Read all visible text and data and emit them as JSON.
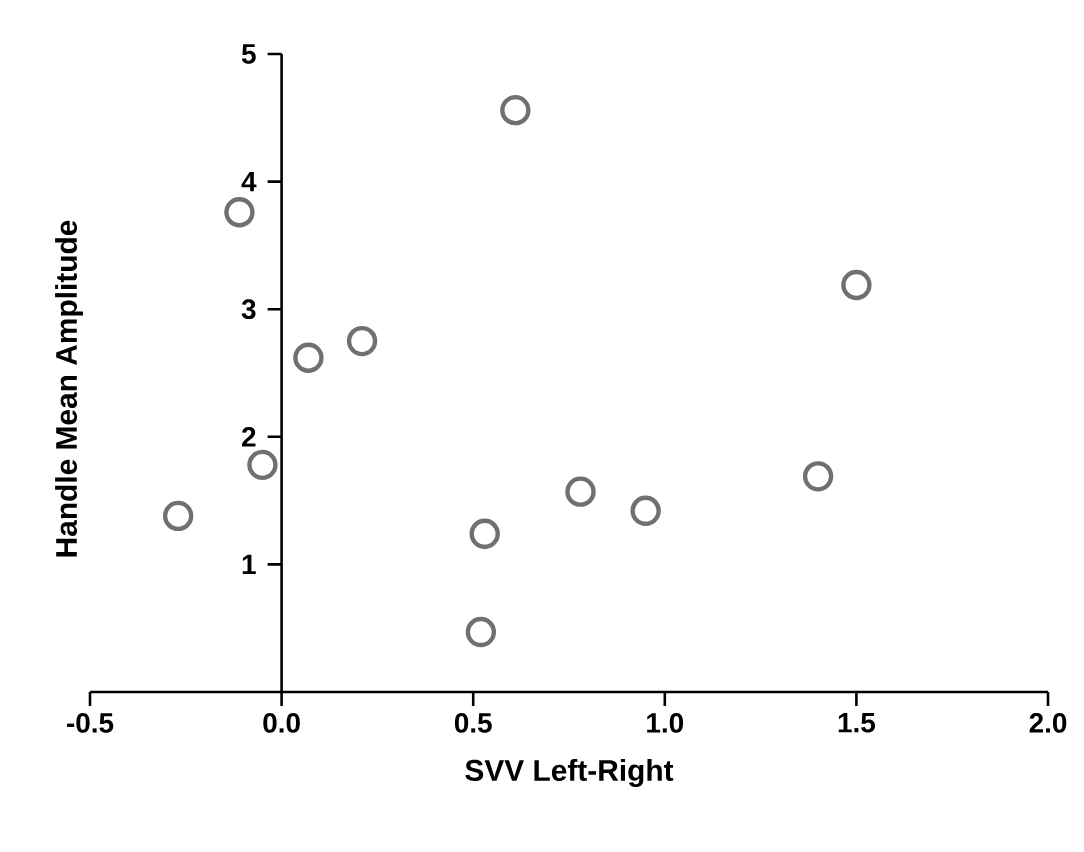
{
  "chart_data": {
    "type": "scatter",
    "xlabel": "SVV Left-Right",
    "ylabel": "Handle Mean Amplitude",
    "x": [
      -0.27,
      -0.11,
      -0.05,
      0.07,
      0.21,
      0.61,
      0.53,
      0.52,
      0.78,
      0.95,
      1.4,
      1.5
    ],
    "values": [
      1.38,
      3.76,
      1.78,
      2.62,
      2.75,
      4.56,
      1.24,
      0.47,
      1.57,
      1.42,
      1.69,
      3.19
    ],
    "color": "#707070",
    "marker": "circle",
    "xlim": [
      -0.5,
      2.0
    ],
    "ylim": [
      0,
      5
    ],
    "xticks": [
      {
        "value": -0.5,
        "label": "-0.5"
      },
      {
        "value": 0,
        "label": "0.0"
      },
      {
        "value": 0.5,
        "label": "0.5"
      },
      {
        "value": 1.0,
        "label": "1.0"
      },
      {
        "value": 1.5,
        "label": "1.5"
      },
      {
        "value": 2.0,
        "label": "2.0"
      }
    ],
    "yticks": [
      1,
      2,
      3,
      4,
      5
    ]
  }
}
